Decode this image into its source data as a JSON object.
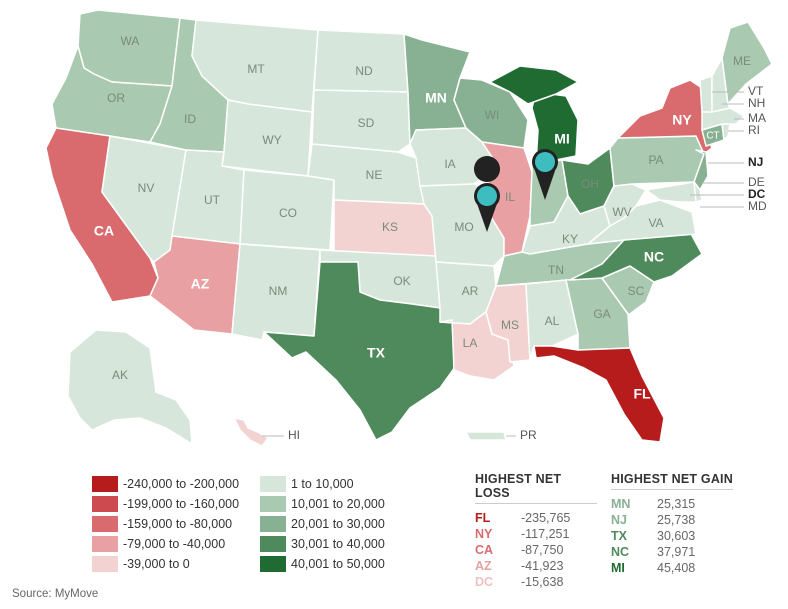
{
  "colors": {
    "bin1": "#b71c1c",
    "bin2": "#cd4a4f",
    "bin3": "#d96b6f",
    "bin4": "#e8a0a2",
    "bin5": "#f3d2d2",
    "bin6": "#d6e6da",
    "bin7": "#a9c9b0",
    "bin8": "#88b193",
    "bin9": "#4f8a5c",
    "bin10": "#1f6b32",
    "pin": "#3dbdbf"
  },
  "states": {
    "WA": {
      "label": "WA",
      "bin": "bin7"
    },
    "OR": {
      "label": "OR",
      "bin": "bin7"
    },
    "CA": {
      "label": "CA",
      "bin": "bin3"
    },
    "ID": {
      "label": "ID",
      "bin": "bin7"
    },
    "NV": {
      "label": "NV",
      "bin": "bin6"
    },
    "MT": {
      "label": "MT",
      "bin": "bin6"
    },
    "WY": {
      "label": "WY",
      "bin": "bin6"
    },
    "UT": {
      "label": "UT",
      "bin": "bin6"
    },
    "AZ": {
      "label": "AZ",
      "bin": "bin4"
    },
    "CO": {
      "label": "CO",
      "bin": "bin6"
    },
    "NM": {
      "label": "NM",
      "bin": "bin6"
    },
    "ND": {
      "label": "ND",
      "bin": "bin6"
    },
    "SD": {
      "label": "SD",
      "bin": "bin6"
    },
    "NE": {
      "label": "NE",
      "bin": "bin6"
    },
    "KS": {
      "label": "KS",
      "bin": "bin5"
    },
    "OK": {
      "label": "OK",
      "bin": "bin6"
    },
    "TX": {
      "label": "TX",
      "bin": "bin9"
    },
    "MN": {
      "label": "MN",
      "bin": "bin8"
    },
    "IA": {
      "label": "IA",
      "bin": "bin6"
    },
    "MO": {
      "label": "MO",
      "bin": "bin6"
    },
    "AR": {
      "label": "AR",
      "bin": "bin6"
    },
    "LA": {
      "label": "LA",
      "bin": "bin5"
    },
    "WI": {
      "label": "WI",
      "bin": "bin8"
    },
    "IL": {
      "label": "IL",
      "bin": "bin4"
    },
    "MS": {
      "label": "MS",
      "bin": "bin5"
    },
    "MI": {
      "label": "MI",
      "bin": "bin10"
    },
    "IN": {
      "label": "",
      "bin": "bin7"
    },
    "KY": {
      "label": "KY",
      "bin": "bin6"
    },
    "TN": {
      "label": "TN",
      "bin": "bin7"
    },
    "AL": {
      "label": "AL",
      "bin": "bin6"
    },
    "OH": {
      "label": "OH",
      "bin": "bin9"
    },
    "GA": {
      "label": "GA",
      "bin": "bin7"
    },
    "FL": {
      "label": "FL",
      "bin": "bin1"
    },
    "SC": {
      "label": "SC",
      "bin": "bin7"
    },
    "NC": {
      "label": "NC",
      "bin": "bin9"
    },
    "VA": {
      "label": "VA",
      "bin": "bin6"
    },
    "WV": {
      "label": "WV",
      "bin": "bin6"
    },
    "PA": {
      "label": "PA",
      "bin": "bin7"
    },
    "NY": {
      "label": "NY",
      "bin": "bin3"
    },
    "NJ": {
      "label": "NJ",
      "bin": "bin8"
    },
    "MD": {
      "label": "MD",
      "bin": "bin6"
    },
    "DE": {
      "label": "DE",
      "bin": "bin6"
    },
    "CT": {
      "label": "CT",
      "bin": "bin8"
    },
    "MA": {
      "label": "MA",
      "bin": "bin6"
    },
    "RI": {
      "label": "RI",
      "bin": "bin6"
    },
    "VT": {
      "label": "VT",
      "bin": "bin6"
    },
    "NH": {
      "label": "NH",
      "bin": "bin6"
    },
    "ME": {
      "label": "ME",
      "bin": "bin7"
    },
    "AK": {
      "label": "AK",
      "bin": "bin6"
    },
    "HI": {
      "label": "HI",
      "bin": "bin5"
    },
    "PR": {
      "label": "PR",
      "bin": "bin6"
    }
  },
  "legend": [
    {
      "text": "-240,000 to -200,000",
      "bin": "bin1"
    },
    {
      "text": "-199,000 to -160,000",
      "bin": "bin2"
    },
    {
      "text": "-159,000 to -80,000",
      "bin": "bin3"
    },
    {
      "text": "-79,000 to -40,000",
      "bin": "bin4"
    },
    {
      "text": "-39,000 to 0",
      "bin": "bin5"
    },
    {
      "text": "1 to 10,000",
      "bin": "bin6"
    },
    {
      "text": "10,001 to 20,000",
      "bin": "bin7"
    },
    {
      "text": "20,001 to 30,000",
      "bin": "bin8"
    },
    {
      "text": "30,001 to 40,000",
      "bin": "bin9"
    },
    {
      "text": "40,001 to 50,000",
      "bin": "bin10"
    }
  ],
  "loss": {
    "title": "HIGHEST NET LOSS",
    "rows": [
      {
        "code": "FL",
        "value": "-235,765",
        "color": "#b71c1c"
      },
      {
        "code": "NY",
        "value": "-117,251",
        "color": "#d96b6f"
      },
      {
        "code": "CA",
        "value": "-87,750",
        "color": "#d96b6f"
      },
      {
        "code": "AZ",
        "value": "-41,923",
        "color": "#e8a0a2"
      },
      {
        "code": "DC",
        "value": "-15,638",
        "color": "#f0c2c3"
      }
    ]
  },
  "gain": {
    "title": "HIGHEST NET GAIN",
    "rows": [
      {
        "code": "MN",
        "value": "25,315",
        "color": "#88b193"
      },
      {
        "code": "NJ",
        "value": "25,738",
        "color": "#88b193"
      },
      {
        "code": "TX",
        "value": "30,603",
        "color": "#4f8a5c"
      },
      {
        "code": "NC",
        "value": "37,971",
        "color": "#4f8a5c"
      },
      {
        "code": "MI",
        "value": "45,408",
        "color": "#1f6b32"
      }
    ]
  },
  "source": "Source: MyMove",
  "external_labels": {
    "VT": "VT",
    "NH": "NH",
    "MA": "MA",
    "RI": "RI",
    "NJ": "NJ",
    "DE": "DE",
    "DC": "DC",
    "MD": "MD"
  }
}
